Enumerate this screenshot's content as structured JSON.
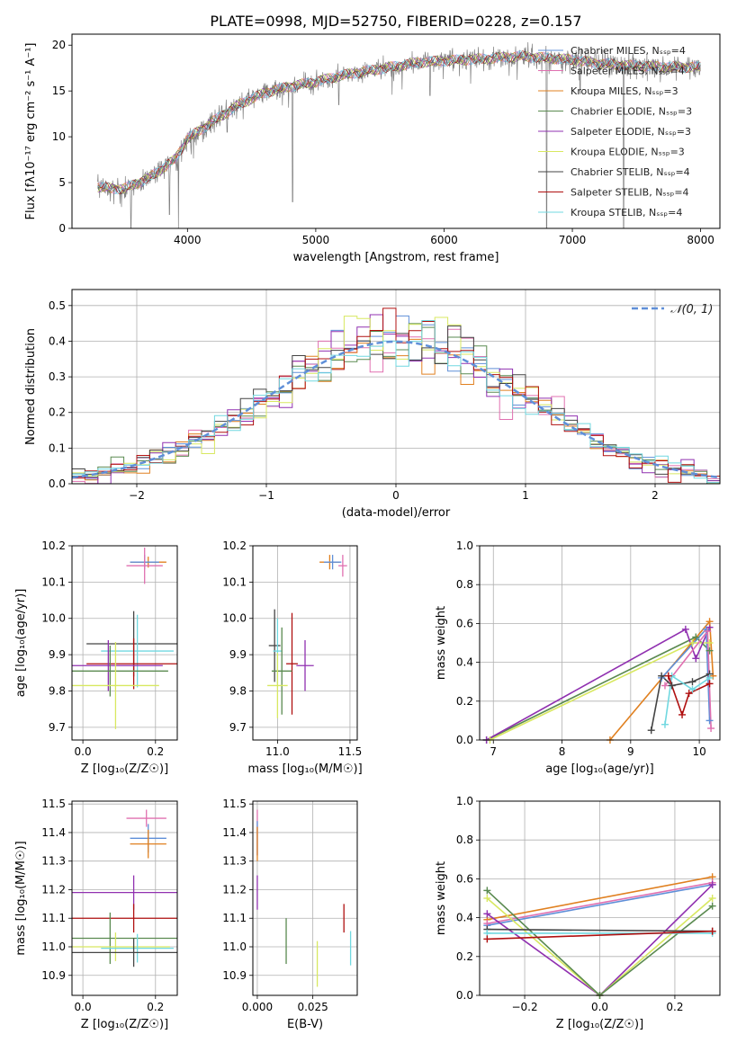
{
  "figure_title": "PLATE=0998, MJD=52750, FIBERID=0228, z=0.157",
  "colors": {
    "chabrier_miles": "#5f8fd8",
    "salpeter_miles": "#e070b0",
    "kroupa_miles": "#e08020",
    "chabrier_elodie": "#5a8a50",
    "salpeter_elodie": "#9030b0",
    "kroupa_elodie": "#d8e860",
    "chabrier_stelib": "#444444",
    "salpeter_stelib": "#b01010",
    "kroupa_stelib": "#70d8e0",
    "data_gray": "#808080"
  },
  "chart_data": [
    {
      "id": "spectrum",
      "type": "line",
      "title": "PLATE=0998, MJD=52750, FIBERID=0228, z=0.157",
      "xlabel": "wavelength [Angstrom, rest frame]",
      "ylabel": "Flux [fλ10⁻¹⁷ erg cm⁻² s⁻¹ A⁻¹]",
      "xlim": [
        3100,
        8150
      ],
      "ylim": [
        0,
        21.2
      ],
      "xticks": [
        4000,
        5000,
        6000,
        7000,
        8000
      ],
      "yticks": [
        0,
        5,
        10,
        15,
        20
      ],
      "grid": false,
      "legend_position": "upper-right",
      "series": [
        {
          "name": "Chabrier MILES, Nₛₛₚ=4",
          "color": "#5f8fd8"
        },
        {
          "name": "Salpeter MILES, Nₛₛₚ=4",
          "color": "#e070b0"
        },
        {
          "name": "Kroupa MILES, Nₛₛₚ=3",
          "color": "#e08020"
        },
        {
          "name": "Chabrier ELODIE, Nₛₛₚ=3",
          "color": "#5a8a50"
        },
        {
          "name": "Salpeter ELODIE, Nₛₛₚ=3",
          "color": "#9030b0"
        },
        {
          "name": "Kroupa ELODIE, Nₛₛₚ=3",
          "color": "#d8e860"
        },
        {
          "name": "Chabrier STELIB, Nₛₛₚ=4",
          "color": "#444444"
        },
        {
          "name": "Salpeter STELIB, Nₛₛₚ=4",
          "color": "#b01010"
        },
        {
          "name": "Kroupa STELIB, Nₛₛₚ=4",
          "color": "#70d8e0"
        }
      ],
      "continuum": {
        "x": [
          3300,
          3500,
          3700,
          3900,
          4000,
          4200,
          4400,
          4600,
          4800,
          5000,
          5200,
          5500,
          5800,
          6000,
          6300,
          6600,
          6800,
          7000,
          7200,
          7400,
          7600,
          7800,
          8000
        ],
        "y": [
          4.5,
          4.3,
          5.5,
          7.5,
          9.8,
          11.7,
          13.5,
          14.8,
          15.5,
          16.0,
          16.7,
          17.4,
          18.1,
          18.3,
          18.5,
          18.8,
          18.6,
          18.4,
          18.0,
          17.8,
          17.7,
          17.6,
          17.6
        ]
      },
      "absorption_dips": [
        {
          "x": 3560,
          "y": 0
        },
        {
          "x": 3860,
          "y": 1.5
        },
        {
          "x": 3930,
          "y": 0
        },
        {
          "x": 4310,
          "y": 10.5
        },
        {
          "x": 4820,
          "y": 2.9
        },
        {
          "x": 5180,
          "y": 13.5
        },
        {
          "x": 5890,
          "y": 14.5
        },
        {
          "x": 6570,
          "y": 16.2
        },
        {
          "x": 6800,
          "y": 0
        },
        {
          "x": 7060,
          "y": 14.7
        },
        {
          "x": 7400,
          "y": 0
        }
      ]
    },
    {
      "id": "residual_hist",
      "type": "histogram",
      "xlabel": "(data-model)/error",
      "ylabel": "Normed distribution",
      "xlim": [
        -2.5,
        2.5
      ],
      "ylim": [
        0,
        0.545
      ],
      "xticks": [
        -2,
        -1,
        0,
        1,
        2
      ],
      "yticks": [
        0.0,
        0.1,
        0.2,
        0.3,
        0.4,
        0.5
      ],
      "grid": true,
      "legend_position": "upper-right",
      "legend_label": "𝒩(0, 1)",
      "reference_curve": "gaussian N(0,1)",
      "bin_width": 0.1,
      "series_count": 9
    },
    {
      "id": "age_vs_Z",
      "type": "errorbar",
      "xlabel": "Z [log₁₀(Z/Z☉)]",
      "ylabel": "age  [log₁₀(age/yr)]",
      "xlim": [
        -0.03,
        0.26
      ],
      "ylim": [
        9.665,
        10.2
      ],
      "xticks": [
        0.0,
        0.2
      ],
      "yticks": [
        9.7,
        9.8,
        9.9,
        10.0,
        10.1,
        10.2
      ],
      "grid": true,
      "points": [
        {
          "x": 0.18,
          "y": 10.155,
          "xerr": 0.05,
          "yerr": 0.015,
          "color": "#e08020"
        },
        {
          "x": 0.17,
          "y": 10.155,
          "xerr": 0.04,
          "yerr": 0.02,
          "color": "#5f8fd8"
        },
        {
          "x": 0.17,
          "y": 10.145,
          "xerr": 0.05,
          "yerr": 0.05,
          "color": "#e070b0"
        },
        {
          "x": 0.14,
          "y": 9.93,
          "xerr": 0.13,
          "yerr": 0.09,
          "color": "#444444"
        },
        {
          "x": 0.15,
          "y": 9.91,
          "xerr": 0.1,
          "yerr": 0.1,
          "color": "#70d8e0"
        },
        {
          "x": 0.14,
          "y": 9.875,
          "xerr": 0.13,
          "yerr": 0.07,
          "color": "#b01010"
        },
        {
          "x": 0.07,
          "y": 9.87,
          "xerr": 0.15,
          "yerr": 0.07,
          "color": "#9030b0"
        },
        {
          "x": 0.075,
          "y": 9.855,
          "xerr": 0.16,
          "yerr": 0.07,
          "color": "#5a8a50"
        },
        {
          "x": 0.09,
          "y": 9.815,
          "xerr": 0.12,
          "yerr": 0.12,
          "color": "#d8e860"
        }
      ]
    },
    {
      "id": "age_vs_mass",
      "type": "errorbar",
      "xlabel": "mass [log₁₀(M/M☉)]",
      "xlim": [
        10.83,
        11.55
      ],
      "ylim": [
        9.665,
        10.2
      ],
      "xticks": [
        11.0,
        11.5
      ],
      "yticks": [
        9.7,
        9.8,
        9.9,
        10.0,
        10.1,
        10.2
      ],
      "grid": true,
      "points": [
        {
          "x": 11.36,
          "y": 10.155,
          "xerr": 0.07,
          "yerr": 0.02,
          "color": "#e08020"
        },
        {
          "x": 11.38,
          "y": 10.155,
          "xerr": 0.06,
          "yerr": 0.02,
          "color": "#5f8fd8"
        },
        {
          "x": 11.45,
          "y": 10.145,
          "xerr": 0.03,
          "yerr": 0.03,
          "color": "#e070b0"
        },
        {
          "x": 10.98,
          "y": 9.925,
          "xerr": 0.04,
          "yerr": 0.1,
          "color": "#444444"
        },
        {
          "x": 11.0,
          "y": 9.91,
          "xerr": 0.03,
          "yerr": 0.09,
          "color": "#70d8e0"
        },
        {
          "x": 11.1,
          "y": 9.875,
          "xerr": 0.04,
          "yerr": 0.14,
          "color": "#b01010"
        },
        {
          "x": 11.19,
          "y": 9.87,
          "xerr": 0.06,
          "yerr": 0.07,
          "color": "#9030b0"
        },
        {
          "x": 11.03,
          "y": 9.855,
          "xerr": 0.07,
          "yerr": 0.12,
          "color": "#5a8a50"
        },
        {
          "x": 11.0,
          "y": 9.815,
          "xerr": 0.07,
          "yerr": 0.09,
          "color": "#d8e860"
        }
      ]
    },
    {
      "id": "massweight_vs_age",
      "type": "line",
      "xlabel": "age  [log₁₀(age/yr)]",
      "ylabel": "mass weight",
      "xlim": [
        6.8,
        10.3
      ],
      "ylim": [
        0,
        1.0
      ],
      "xticks": [
        7,
        8,
        9,
        10
      ],
      "yticks": [
        0.0,
        0.2,
        0.4,
        0.6,
        0.8,
        1.0
      ],
      "grid": true,
      "series": [
        {
          "color": "#5a8a50",
          "x": [
            6.9,
            9.95,
            10.15
          ],
          "y": [
            0.0,
            0.53,
            0.46
          ]
        },
        {
          "color": "#d8e860",
          "x": [
            6.95,
            9.9,
            10.15
          ],
          "y": [
            0.0,
            0.5,
            0.5
          ]
        },
        {
          "color": "#9030b0",
          "x": [
            6.9,
            9.8,
            9.95,
            10.15
          ],
          "y": [
            0.0,
            0.57,
            0.42,
            0.58
          ]
        },
        {
          "color": "#e08020",
          "x": [
            8.7,
            10.15,
            10.2
          ],
          "y": [
            0.0,
            0.61,
            0.33
          ]
        },
        {
          "color": "#5f8fd8",
          "x": [
            9.45,
            10.1,
            10.15
          ],
          "y": [
            0.32,
            0.57,
            0.1
          ]
        },
        {
          "color": "#e070b0",
          "x": [
            9.5,
            10.12,
            10.17
          ],
          "y": [
            0.28,
            0.56,
            0.06
          ]
        },
        {
          "color": "#444444",
          "x": [
            9.3,
            9.45,
            9.6,
            9.9,
            10.15
          ],
          "y": [
            0.05,
            0.33,
            0.28,
            0.3,
            0.34
          ]
        },
        {
          "color": "#70d8e0",
          "x": [
            9.5,
            9.6,
            9.9,
            10.15
          ],
          "y": [
            0.08,
            0.33,
            0.26,
            0.32
          ]
        },
        {
          "color": "#b01010",
          "x": [
            9.55,
            9.75,
            9.85,
            10.15
          ],
          "y": [
            0.33,
            0.13,
            0.24,
            0.29
          ]
        }
      ]
    },
    {
      "id": "mass_vs_Z",
      "type": "errorbar",
      "xlabel": "Z [log₁₀(Z/Z☉)]",
      "ylabel": "mass [log₁₀(M/M☉)]",
      "xlim": [
        -0.03,
        0.26
      ],
      "ylim": [
        10.83,
        11.51
      ],
      "xticks": [
        0.0,
        0.2
      ],
      "yticks": [
        10.9,
        11.0,
        11.1,
        11.2,
        11.3,
        11.4,
        11.5
      ],
      "grid": true,
      "points": [
        {
          "x": 0.175,
          "y": 11.45,
          "xerr": 0.055,
          "yerr": 0.03,
          "color": "#e070b0"
        },
        {
          "x": 0.18,
          "y": 11.38,
          "xerr": 0.05,
          "yerr": 0.05,
          "color": "#5f8fd8"
        },
        {
          "x": 0.18,
          "y": 11.36,
          "xerr": 0.05,
          "yerr": 0.05,
          "color": "#e08020"
        },
        {
          "x": 0.14,
          "y": 11.19,
          "xerr": 0.17,
          "yerr": 0.06,
          "color": "#9030b0"
        },
        {
          "x": 0.14,
          "y": 11.1,
          "xerr": 0.22,
          "yerr": 0.05,
          "color": "#b01010"
        },
        {
          "x": 0.075,
          "y": 11.03,
          "xerr": 0.2,
          "yerr": 0.09,
          "color": "#5a8a50"
        },
        {
          "x": 0.09,
          "y": 11.0,
          "xerr": 0.15,
          "yerr": 0.05,
          "color": "#d8e860"
        },
        {
          "x": 0.15,
          "y": 10.995,
          "xerr": 0.1,
          "yerr": 0.05,
          "color": "#70d8e0"
        },
        {
          "x": 0.14,
          "y": 10.98,
          "xerr": 0.18,
          "yerr": 0.05,
          "color": "#444444"
        }
      ]
    },
    {
      "id": "mass_vs_ebv",
      "type": "errorbar",
      "xlabel": "E(B-V)",
      "xlim": [
        -0.002,
        0.045
      ],
      "ylim": [
        10.83,
        11.51
      ],
      "xticks": [
        0.0,
        0.025
      ],
      "yticks": [
        10.9,
        11.0,
        11.1,
        11.2,
        11.3,
        11.4,
        11.5
      ],
      "grid": true,
      "points": [
        {
          "x": 0.0,
          "y": 11.4,
          "xerr": 0.0,
          "yerr": 0.08,
          "color": "#e070b0"
        },
        {
          "x": 0.0,
          "y": 11.38,
          "xerr": 0.0,
          "yerr": 0.06,
          "color": "#5f8fd8"
        },
        {
          "x": 0.0,
          "y": 11.36,
          "xerr": 0.0,
          "yerr": 0.06,
          "color": "#e08020"
        },
        {
          "x": 0.0,
          "y": 11.19,
          "xerr": 0.0,
          "yerr": 0.06,
          "color": "#9030b0"
        },
        {
          "x": 0.013,
          "y": 11.02,
          "xerr": 0.0,
          "yerr": 0.08,
          "color": "#5a8a50"
        },
        {
          "x": 0.027,
          "y": 10.94,
          "xerr": 0.0,
          "yerr": 0.08,
          "color": "#d8e860"
        },
        {
          "x": 0.039,
          "y": 11.1,
          "xerr": 0.0,
          "yerr": 0.05,
          "color": "#b01010"
        },
        {
          "x": 0.042,
          "y": 10.995,
          "xerr": 0.0,
          "yerr": 0.06,
          "color": "#70d8e0"
        }
      ]
    },
    {
      "id": "massweight_vs_Z",
      "type": "line",
      "xlabel": "Z [log₁₀(Z/Z☉)]",
      "ylabel": "mass weight",
      "xlim": [
        -0.32,
        0.32
      ],
      "ylim": [
        0,
        1.0
      ],
      "xticks": [
        -0.2,
        0.0,
        0.2
      ],
      "yticks": [
        0.0,
        0.2,
        0.4,
        0.6,
        0.8,
        1.0
      ],
      "grid": true,
      "series": [
        {
          "color": "#e08020",
          "x": [
            -0.3,
            0.3
          ],
          "y": [
            0.39,
            0.61
          ]
        },
        {
          "color": "#5f8fd8",
          "x": [
            -0.3,
            0.3
          ],
          "y": [
            0.36,
            0.57
          ]
        },
        {
          "color": "#e070b0",
          "x": [
            -0.3,
            0.3
          ],
          "y": [
            0.37,
            0.58
          ]
        },
        {
          "color": "#9030b0",
          "x": [
            -0.3,
            0.0,
            0.3
          ],
          "y": [
            0.42,
            0.0,
            0.57
          ]
        },
        {
          "color": "#d8e860",
          "x": [
            -0.3,
            0.0,
            0.3
          ],
          "y": [
            0.5,
            0.0,
            0.5
          ]
        },
        {
          "color": "#5a8a50",
          "x": [
            -0.3,
            0.0,
            0.3
          ],
          "y": [
            0.54,
            0.0,
            0.46
          ]
        },
        {
          "color": "#444444",
          "x": [
            -0.3,
            0.3
          ],
          "y": [
            0.34,
            0.33
          ]
        },
        {
          "color": "#70d8e0",
          "x": [
            -0.3,
            0.3
          ],
          "y": [
            0.32,
            0.32
          ]
        },
        {
          "color": "#b01010",
          "x": [
            -0.3,
            0.3
          ],
          "y": [
            0.29,
            0.33
          ]
        }
      ]
    }
  ]
}
